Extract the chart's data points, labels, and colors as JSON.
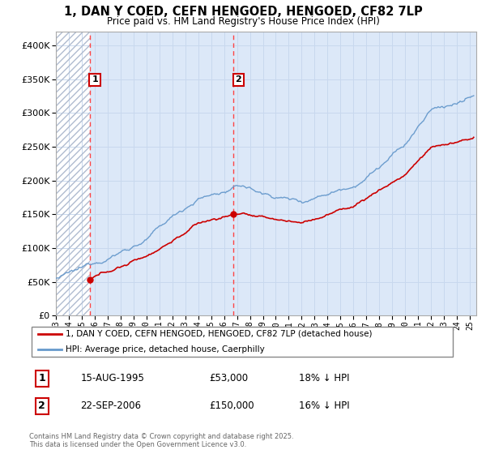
{
  "title_line1": "1, DAN Y COED, CEFN HENGOED, HENGOED, CF82 7LP",
  "title_line2": "Price paid vs. HM Land Registry's House Price Index (HPI)",
  "legend_label1": "1, DAN Y COED, CEFN HENGOED, HENGOED, CF82 7LP (detached house)",
  "legend_label2": "HPI: Average price, detached house, Caerphilly",
  "sale1_date": "15-AUG-1995",
  "sale1_price": 53000,
  "sale1_hpi": "18% ↓ HPI",
  "sale2_date": "22-SEP-2006",
  "sale2_price": 150000,
  "sale2_hpi": "16% ↓ HPI",
  "footer": "Contains HM Land Registry data © Crown copyright and database right 2025.\nThis data is licensed under the Open Government Licence v3.0.",
  "sale1_x": 1995.62,
  "sale2_x": 2006.72,
  "background_color": "#dce8f8",
  "hatch_color": "#b0bcd0",
  "grid_color": "#c8d8ee",
  "line_red": "#cc0000",
  "line_blue": "#6699cc",
  "marker_red": "#cc0000",
  "dashed_red": "#ff4444",
  "ylim_max": 420000,
  "ylim_min": 0
}
